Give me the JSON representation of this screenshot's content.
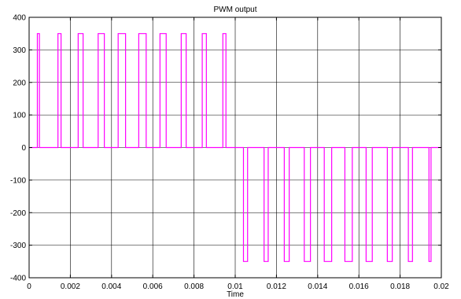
{
  "chart_data": {
    "type": "line",
    "title": "PWM output",
    "xlabel": "Time",
    "ylabel": "",
    "xlim": [
      0,
      0.02
    ],
    "ylim": [
      -400,
      400
    ],
    "xticks": [
      0,
      0.002,
      0.004,
      0.006,
      0.008,
      0.01,
      0.012,
      0.014,
      0.016,
      0.018,
      0.02
    ],
    "xtick_labels": [
      "0",
      "0.002",
      "0.004",
      "0.006",
      "0.008",
      "0.01",
      "0.012",
      "0.014",
      "0.016",
      "0.018",
      "0.02"
    ],
    "yticks": [
      -400,
      -300,
      -200,
      -100,
      0,
      100,
      200,
      300,
      400
    ],
    "ytick_labels": [
      "-400",
      "-300",
      "-200",
      "-100",
      "0",
      "100",
      "200",
      "300",
      "400"
    ],
    "grid": true,
    "colors": {
      "background": "#ffffff",
      "axes": "#000000",
      "grid": "#000000"
    },
    "series": [
      {
        "color": "#ff00ff",
        "amplitude": 350,
        "pulses": [
          {
            "start": 0.0004,
            "end": 0.0005,
            "level": 350
          },
          {
            "start": 0.0014,
            "end": 0.00155,
            "level": 350
          },
          {
            "start": 0.00238,
            "end": 0.00262,
            "level": 350
          },
          {
            "start": 0.00335,
            "end": 0.00365,
            "level": 350
          },
          {
            "start": 0.00432,
            "end": 0.00468,
            "level": 350
          },
          {
            "start": 0.00532,
            "end": 0.00568,
            "level": 350
          },
          {
            "start": 0.00635,
            "end": 0.00665,
            "level": 350
          },
          {
            "start": 0.00738,
            "end": 0.00762,
            "level": 350
          },
          {
            "start": 0.0084,
            "end": 0.0086,
            "level": 350
          },
          {
            "start": 0.0094,
            "end": 0.00955,
            "level": 350
          },
          {
            "start": 0.0104,
            "end": 0.0106,
            "level": -350
          },
          {
            "start": 0.0114,
            "end": 0.0116,
            "level": -350
          },
          {
            "start": 0.01238,
            "end": 0.01262,
            "level": -350
          },
          {
            "start": 0.01335,
            "end": 0.01365,
            "level": -350
          },
          {
            "start": 0.01432,
            "end": 0.01468,
            "level": -350
          },
          {
            "start": 0.01532,
            "end": 0.01568,
            "level": -350
          },
          {
            "start": 0.01635,
            "end": 0.01665,
            "level": -350
          },
          {
            "start": 0.01738,
            "end": 0.01762,
            "level": -350
          },
          {
            "start": 0.0184,
            "end": 0.0186,
            "level": -350
          },
          {
            "start": 0.0194,
            "end": 0.0195,
            "level": -350
          }
        ]
      }
    ]
  }
}
